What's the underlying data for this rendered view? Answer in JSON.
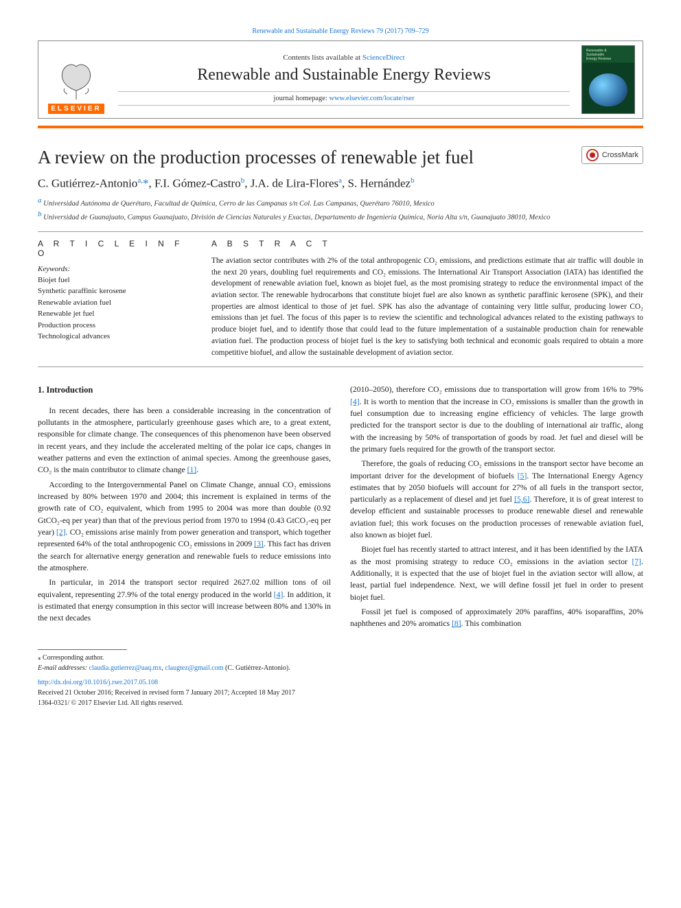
{
  "colors": {
    "link": "#1976d2",
    "accent": "#ff6b00",
    "rule": "#999999",
    "text": "#1a1a1a",
    "background": "#ffffff"
  },
  "header": {
    "top_link_prefix": "Renewable and Sustainable Energy Reviews 79 (2017) 709–729",
    "contents_prefix": "Contents lists available at ",
    "contents_link": "ScienceDirect",
    "journal_name": "Renewable and Sustainable Energy Reviews",
    "homepage_prefix": "journal homepage: ",
    "homepage_link": "www.elsevier.com/locate/rser",
    "publisher_logo_label": "ELSEVIER",
    "crossmark_label": "CrossMark"
  },
  "title": "A review on the production processes of renewable jet fuel",
  "authors_html": "C. Gutiérrez-Antonio<sup>a,</sup><span class='star'>*</span>, F.I. Gómez-Castro<sup>b</sup>, J.A. de Lira-Flores<sup>a</sup>, S. Hernández<sup>b</sup>",
  "affiliations": [
    {
      "mark": "a",
      "text": "Universidad Autónoma de Querétaro, Facultad de Química, Cerro de las Campanas s/n Col. Las Campanas, Querétaro 76010, Mexico"
    },
    {
      "mark": "b",
      "text": "Universidad de Guanajuato, Campus Guanajuato, División de Ciencias Naturales y Exactas, Departamento de Ingeniería Química, Noria Alta s/n, Guanajuato 38010, Mexico"
    }
  ],
  "article_info": {
    "heading": "A R T I C L E  I N F O",
    "keywords_label": "Keywords:",
    "keywords": [
      "Biojet fuel",
      "Synthetic paraffinic kerosene",
      "Renewable aviation fuel",
      "Renewable jet fuel",
      "Production process",
      "Technological advances"
    ]
  },
  "abstract": {
    "heading": "A B S T R A C T",
    "text": "The aviation sector contributes with 2% of the total anthropogenic CO₂ emissions, and predictions estimate that air traffic will double in the next 20 years, doubling fuel requirements and CO₂ emissions. The International Air Transport Association (IATA) has identified the development of renewable aviation fuel, known as biojet fuel, as the most promising strategy to reduce the environmental impact of the aviation sector. The renewable hydrocarbons that constitute biojet fuel are also known as synthetic paraffinic kerosene (SPK), and their properties are almost identical to those of jet fuel. SPK has also the advantage of containing very little sulfur, producing lower CO₂ emissions than jet fuel. The focus of this paper is to review the scientific and technological advances related to the existing pathways to produce biojet fuel, and to identify those that could lead to the future implementation of a sustainable production chain for renewable aviation fuel. The production process of biojet fuel is the key to satisfying both technical and economic goals required to obtain a more competitive biofuel, and allow the sustainable development of aviation sector."
  },
  "section1": {
    "heading": "1. Introduction",
    "p1": "In recent decades, there has been a considerable increasing in the concentration of pollutants in the atmosphere, particularly greenhouse gases which are, to a great extent, responsible for climate change. The consequences of this phenomenon have been observed in recent years, and they include the accelerated melting of the polar ice caps, changes in weather patterns and even the extinction of animal species. Among the greenhouse gases, CO₂ is the main contributor to climate change ",
    "p1_cite": "[1]",
    "p1_tail": ".",
    "p2a": "According to the Intergovernmental Panel on Climate Change, annual CO₂ emissions increased by 80% between 1970 and 2004; this increment is explained in terms of the growth rate of CO₂ equivalent, which from 1995 to 2004 was more than double (0.92 GtCO₂-eq per year) than that of the previous period from 1970 to 1994 (0.43 GtCO₂-eq per year) ",
    "p2_cite1": "[2]",
    "p2b": ". CO₂ emissions arise mainly from power generation and transport, which together represented 64% of the total anthropogenic CO₂ emissions in 2009 ",
    "p2_cite2": "[3]",
    "p2c": ". This fact has driven the search for alternative energy generation and renewable fuels to reduce emissions into the atmosphere.",
    "p3a": "In particular, in 2014 the transport sector required 2627.02 million tons of oil equivalent, representing 27.9% of the total energy produced in the world ",
    "p3_cite1": "[4]",
    "p3b": ". In addition, it is estimated that energy consumption in this sector will increase between 80% and 130% in the next decades",
    "p4a": "(2010–2050), therefore CO₂ emissions due to transportation will grow from 16% to 79% ",
    "p4_cite1": "[4]",
    "p4b": ". It is worth to mention that the increase in CO₂ emissions is smaller than the growth in fuel consumption due to increasing engine efficiency of vehicles. The large growth predicted for the transport sector is due to the doubling of international air traffic, along with the increasing by 50% of transportation of goods by road. Jet fuel and diesel will be the primary fuels required for the growth of the transport sector.",
    "p5a": "Therefore, the goals of reducing CO₂ emissions in the transport sector have become an important driver for the development of biofuels ",
    "p5_cite1": "[5]",
    "p5b": ". The International Energy Agency estimates that by 2050 biofuels will account for 27% of all fuels in the transport sector, particularly as a replacement of diesel and jet fuel ",
    "p5_cite2": "[5,6]",
    "p5c": ". Therefore, it is of great interest to develop efficient and sustainable processes to produce renewable diesel and renewable aviation fuel; this work focuses on the production processes of renewable aviation fuel, also known as biojet fuel.",
    "p6a": "Biojet fuel has recently started to attract interest, and it has been identified by the IATA as the most promising strategy to reduce CO₂ emissions in the aviation sector ",
    "p6_cite1": "[7]",
    "p6b": ". Additionally, it is expected that the use of biojet fuel in the aviation sector will allow, at least, partial fuel independence. Next, we will define fossil jet fuel in order to present biojet fuel.",
    "p7a": "Fossil jet fuel is composed of approximately 20% paraffins, 40% isoparaffins, 20% naphthenes and 20% aromatics ",
    "p7_cite1": "[8]",
    "p7b": ". This combination"
  },
  "footer": {
    "corr_mark": "⁎",
    "corresponding": "Corresponding author.",
    "email_label": "E-mail addresses: ",
    "email1": "claudia.gutierrez@uaq.mx",
    "email_sep": ", ",
    "email2": "claugtez@gmail.com",
    "email_tail": " (C. Gutiérrez-Antonio).",
    "doi": "http://dx.doi.org/10.1016/j.rser.2017.05.108",
    "received": "Received 21 October 2016; Received in revised form 7 January 2017; Accepted 18 May 2017",
    "issn": "1364-0321/ © 2017 Elsevier Ltd. All rights reserved."
  }
}
